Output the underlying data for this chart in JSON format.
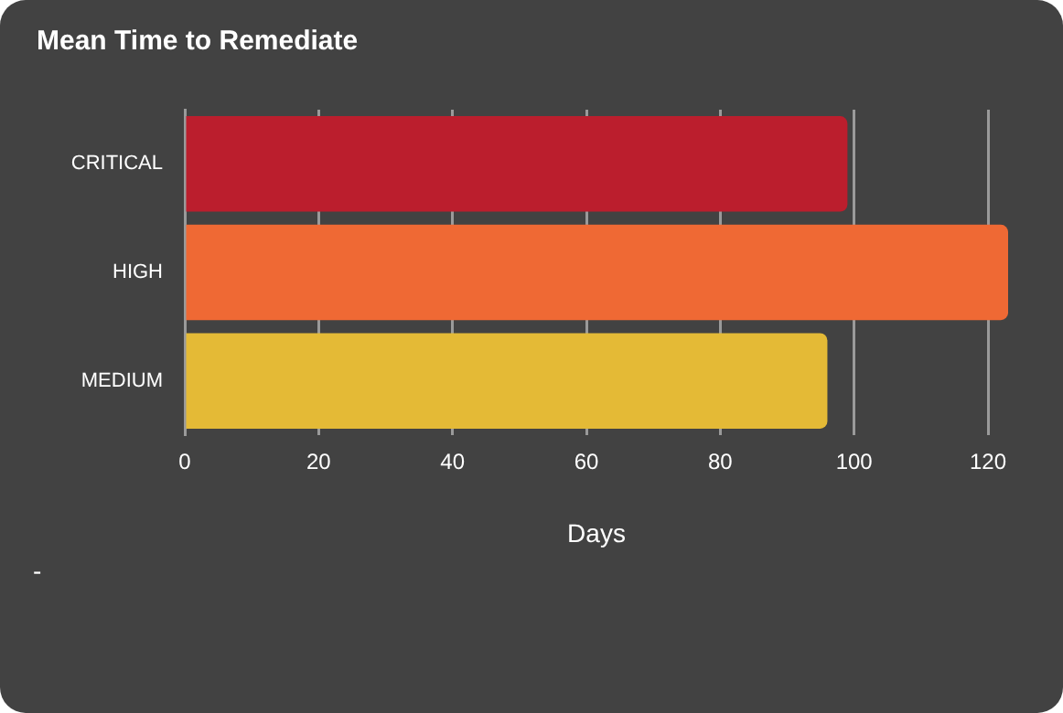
{
  "chart_data": {
    "type": "bar",
    "orientation": "horizontal",
    "title": "Mean Time to Remediate",
    "xlabel": "Days",
    "categories": [
      "CRITICAL",
      "HIGH",
      "MEDIUM"
    ],
    "values": [
      99,
      123,
      96
    ],
    "colors": [
      "#bb1e2d",
      "#ef6934",
      "#e4ba36"
    ],
    "xlim": [
      0,
      123
    ],
    "xticks": [
      0,
      20,
      40,
      60,
      80,
      100,
      120
    ],
    "grid": "x",
    "annotations": [
      "-"
    ]
  }
}
